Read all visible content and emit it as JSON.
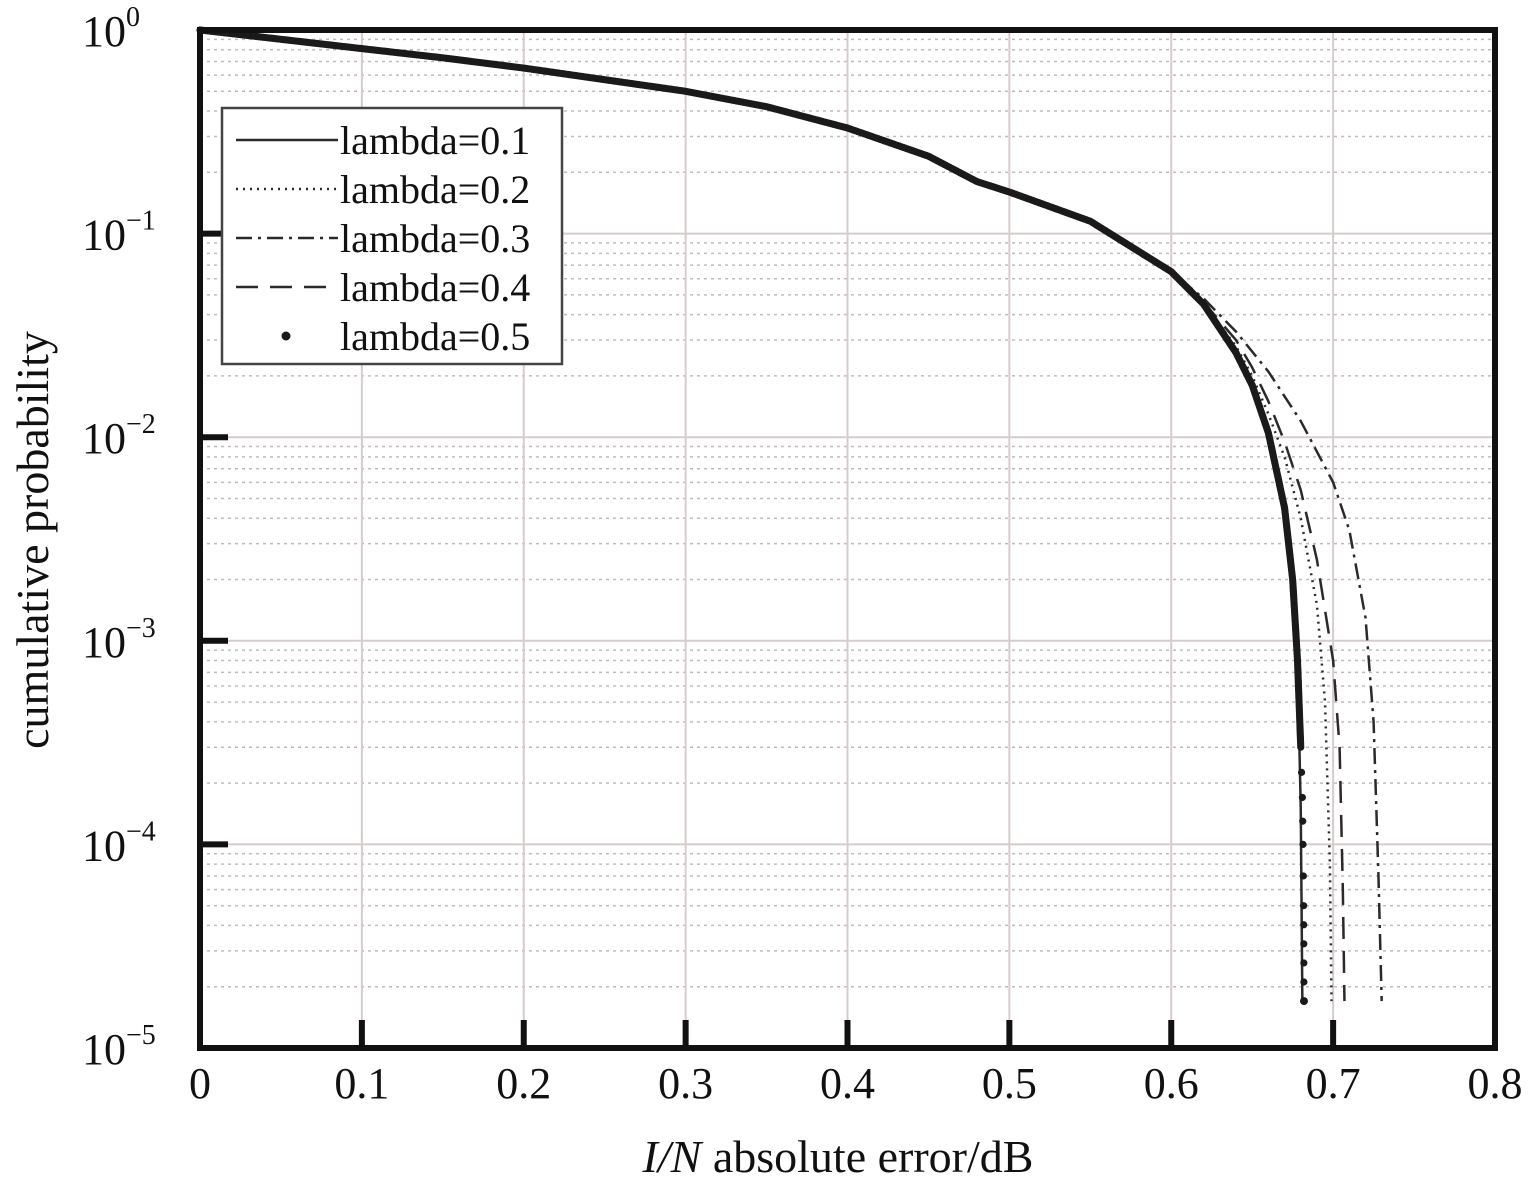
{
  "chart_data": {
    "type": "line",
    "title": "",
    "xlabel_italic": "I/N",
    "xlabel_rest": " absolute error/dB",
    "ylabel": "cumulative probability",
    "xlim": [
      0,
      0.8
    ],
    "ylim": [
      1e-05,
      1
    ],
    "yscale": "log",
    "grid": true,
    "legend_position": "top-left",
    "x_ticks": [
      {
        "value": 0,
        "label": "0"
      },
      {
        "value": 0.1,
        "label": "0.1"
      },
      {
        "value": 0.2,
        "label": "0.2"
      },
      {
        "value": 0.3,
        "label": "0.3"
      },
      {
        "value": 0.4,
        "label": "0.4"
      },
      {
        "value": 0.5,
        "label": "0.5"
      },
      {
        "value": 0.6,
        "label": "0.6"
      },
      {
        "value": 0.7,
        "label": "0.7"
      },
      {
        "value": 0.8,
        "label": "0.8"
      }
    ],
    "y_ticks": [
      {
        "exp": 0,
        "base": "10",
        "sup": "0"
      },
      {
        "exp": -1,
        "base": "10",
        "sup": "−1"
      },
      {
        "exp": -2,
        "base": "10",
        "sup": "−2"
      },
      {
        "exp": -3,
        "base": "10",
        "sup": "−3"
      },
      {
        "exp": -4,
        "base": "10",
        "sup": "−4"
      },
      {
        "exp": -5,
        "base": "10",
        "sup": "−5"
      }
    ],
    "series": [
      {
        "name": "lambda=0.1",
        "style": "solid",
        "color": "#2a2a2a",
        "x": [
          0,
          0.05,
          0.1,
          0.15,
          0.2,
          0.25,
          0.3,
          0.35,
          0.4,
          0.45,
          0.48,
          0.5,
          0.55,
          0.6,
          0.62,
          0.64,
          0.65,
          0.66,
          0.67,
          0.675,
          0.678,
          0.68,
          0.681
        ],
        "y": [
          1,
          0.9,
          0.81,
          0.73,
          0.65,
          0.57,
          0.5,
          0.42,
          0.33,
          0.24,
          0.18,
          0.16,
          0.115,
          0.065,
          0.045,
          0.026,
          0.018,
          0.0105,
          0.0045,
          0.002,
          0.0008,
          0.00015,
          1.7e-05
        ]
      },
      {
        "name": "lambda=0.2",
        "style": "dotted",
        "color": "#2a2a2a",
        "x": [
          0,
          0.05,
          0.1,
          0.15,
          0.2,
          0.25,
          0.3,
          0.35,
          0.4,
          0.45,
          0.48,
          0.5,
          0.55,
          0.6,
          0.62,
          0.64,
          0.65,
          0.66,
          0.67,
          0.68,
          0.69,
          0.695,
          0.698,
          0.699
        ],
        "y": [
          1,
          0.9,
          0.81,
          0.73,
          0.65,
          0.57,
          0.5,
          0.42,
          0.33,
          0.24,
          0.18,
          0.16,
          0.115,
          0.065,
          0.045,
          0.028,
          0.02,
          0.013,
          0.008,
          0.004,
          0.0015,
          0.0005,
          8e-05,
          1.7e-05
        ]
      },
      {
        "name": "lambda=0.3",
        "style": "dashdot",
        "color": "#2a2a2a",
        "x": [
          0,
          0.05,
          0.1,
          0.15,
          0.2,
          0.25,
          0.3,
          0.35,
          0.4,
          0.45,
          0.48,
          0.5,
          0.55,
          0.6,
          0.62,
          0.64,
          0.66,
          0.68,
          0.7,
          0.71,
          0.72,
          0.725,
          0.728,
          0.73
        ],
        "y": [
          1,
          0.9,
          0.81,
          0.73,
          0.65,
          0.57,
          0.5,
          0.42,
          0.33,
          0.24,
          0.18,
          0.16,
          0.115,
          0.065,
          0.048,
          0.033,
          0.021,
          0.012,
          0.006,
          0.0035,
          0.0013,
          0.0004,
          7e-05,
          1.7e-05
        ]
      },
      {
        "name": "lambda=0.4",
        "style": "dashed",
        "color": "#2a2a2a",
        "x": [
          0,
          0.05,
          0.1,
          0.15,
          0.2,
          0.25,
          0.3,
          0.35,
          0.4,
          0.45,
          0.48,
          0.5,
          0.55,
          0.6,
          0.62,
          0.64,
          0.65,
          0.66,
          0.67,
          0.68,
          0.69,
          0.7,
          0.704,
          0.706,
          0.707
        ],
        "y": [
          1,
          0.9,
          0.81,
          0.73,
          0.65,
          0.57,
          0.5,
          0.42,
          0.33,
          0.24,
          0.18,
          0.16,
          0.115,
          0.065,
          0.046,
          0.03,
          0.022,
          0.015,
          0.0095,
          0.0055,
          0.0025,
          0.0008,
          0.0003,
          6e-05,
          1.7e-05
        ]
      },
      {
        "name": "lambda=0.5",
        "style": "markers",
        "color": "#1a1a1a",
        "x": [
          0,
          0.05,
          0.1,
          0.15,
          0.2,
          0.25,
          0.3,
          0.35,
          0.4,
          0.45,
          0.48,
          0.5,
          0.55,
          0.6,
          0.62,
          0.64,
          0.65,
          0.66,
          0.67,
          0.675,
          0.678,
          0.68,
          0.681,
          0.6812,
          0.6814,
          0.6816,
          0.6818,
          0.682
        ],
        "y": [
          1,
          0.9,
          0.81,
          0.73,
          0.65,
          0.57,
          0.5,
          0.42,
          0.33,
          0.24,
          0.18,
          0.16,
          0.115,
          0.065,
          0.045,
          0.026,
          0.018,
          0.0105,
          0.0045,
          0.002,
          0.0008,
          0.0003,
          0.00017,
          0.00013,
          0.0001,
          7e-05,
          5e-05,
          1.7e-05
        ]
      }
    ]
  }
}
